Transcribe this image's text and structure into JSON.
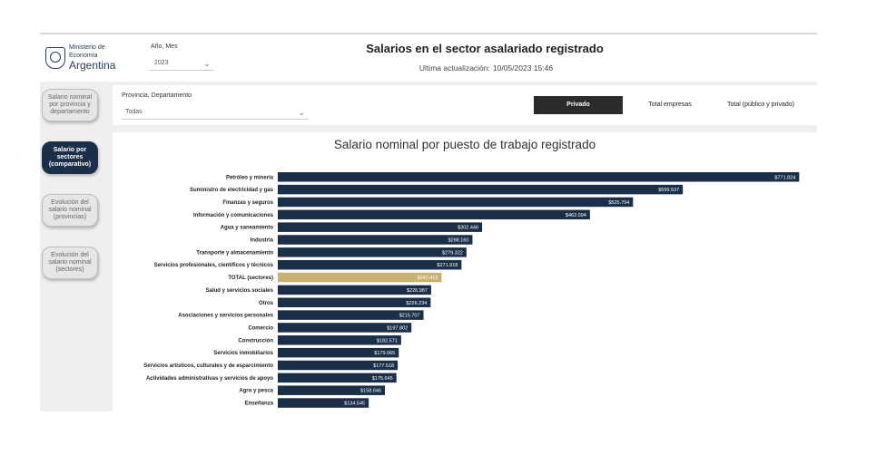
{
  "header": {
    "logo": {
      "line1": "Ministerio de",
      "line2": "Economía",
      "line3": "Argentina"
    },
    "year_label": "Año, Mes",
    "year_value": "2023",
    "title": "Salarios en el sector asalariado registrado",
    "update_label": "Ultima actualización:",
    "update_value": "10/05/2023 15:46"
  },
  "sidebar": {
    "items": [
      {
        "label": "Salario nominal por provincia y departamento",
        "active": false
      },
      {
        "label": "Salario por sectores (comparativo)",
        "active": true
      },
      {
        "label": "Evolución del salario nominal (provincias)",
        "active": false
      },
      {
        "label": "Evolución del salario nominal (sectores)",
        "active": false
      }
    ]
  },
  "filters": {
    "province_label": "Provincia, Departamento",
    "province_value": "Todas",
    "segments": [
      {
        "label": "Privado",
        "active": true
      },
      {
        "label": "Total empresas",
        "active": false
      },
      {
        "label": "Total (público y privado)",
        "active": false
      }
    ]
  },
  "colors": {
    "bar": "#1c2f48",
    "highlight": "#c8b273",
    "active_button": "#1c2f48",
    "segment_active": "#2b2b2b"
  },
  "chart_data": {
    "type": "bar",
    "orientation": "horizontal",
    "title": "Salario nominal por puesto de trabajo registrado",
    "xlim": [
      0,
      860000
    ],
    "categories": [
      "Petróleo y minería",
      "Suministro de electricidad y gas",
      "Finanzas y seguros",
      "Información y comunicaciones",
      "Agua y saneamiento",
      "Industria",
      "Transporte y almacenamiento",
      "Servicios profesionales, científicos y técnicos",
      "TOTAL (sectores)",
      "Salud y servicios sociales",
      "Otros",
      "Asociaciones y servicios personales",
      "Comercio",
      "Construcción",
      "Servicios inmobiliarios",
      "Servicios artísticos, culturales y de esparcimiento",
      "Actividades administrativas y servicios de apoyo",
      "Agro y pesca",
      "Enseñanza"
    ],
    "values": [
      771824,
      599537,
      525794,
      462094,
      302446,
      288160,
      279322,
      271918,
      242412,
      226987,
      226234,
      215707,
      197802,
      182571,
      179065,
      177518,
      175645,
      158646,
      134545
    ],
    "value_labels": [
      "$771.824",
      "$599.537",
      "$525.794",
      "$462.094",
      "$302.446",
      "$288.160",
      "$279.322",
      "$271.918",
      "$242.412",
      "$226.987",
      "$226.234",
      "$215.707",
      "$197.802",
      "$182.571",
      "$179.065",
      "$177.518",
      "$175.645",
      "$158.646",
      "$134.545"
    ],
    "highlight_category": "TOTAL (sectores)"
  }
}
